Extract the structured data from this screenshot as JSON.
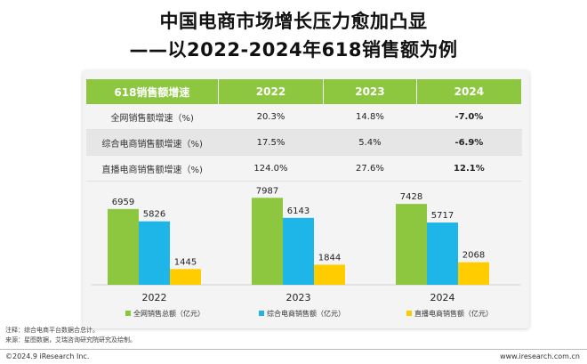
{
  "title": {
    "line1": "中国电商市场增长压力愈加凸显",
    "line2": "——以2022-2024年618销售额为例"
  },
  "table": {
    "header": [
      "618销售额增速",
      "2022",
      "2023",
      "2024"
    ],
    "rows": [
      {
        "label": "全网销售额增速（%)",
        "v2022": "20.3%",
        "v2023": "14.8%",
        "v2024": "-7.0%"
      },
      {
        "label": "综合电商销售额增速（%)",
        "v2022": "17.5%",
        "v2023": "5.4%",
        "v2024": "-6.9%"
      },
      {
        "label": "直播电商销售额增速（%)",
        "v2022": "124.0%",
        "v2023": "27.6%",
        "v2024": "12.1%"
      }
    ]
  },
  "colors": {
    "total": "#8dc63f",
    "comprehensive": "#1eb6e8",
    "live": "#ffcc00",
    "header": "#8dc63f"
  },
  "chart_data": {
    "type": "bar",
    "title": "",
    "categories": [
      "2022",
      "2023",
      "2024"
    ],
    "series": [
      {
        "name": "全网销售总额（亿元）",
        "values": [
          6959,
          7987,
          7428
        ]
      },
      {
        "name": "综合电商销售额（亿元）",
        "values": [
          5826,
          6143,
          5717
        ]
      },
      {
        "name": "直播电商销售额（亿元）",
        "values": [
          1445,
          1844,
          2068
        ]
      }
    ],
    "xlabel": "",
    "ylabel": "",
    "ylim": [
      0,
      8500
    ],
    "legend_position": "bottom"
  },
  "footnote": {
    "note": "注释：综合电商平台数据合总计。",
    "source": "来源：星图数据，艾瑞咨询研究院研究及绘制。"
  },
  "copyright": "©2024.9 iResearch Inc.",
  "url": "www.iresearch.com.cn"
}
